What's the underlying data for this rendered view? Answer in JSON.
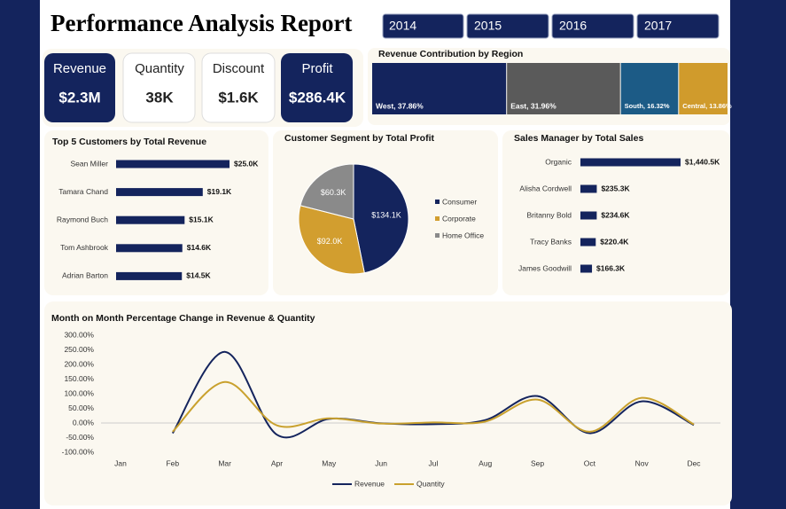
{
  "header": {
    "title": "Performance Analysis Report"
  },
  "years": [
    "2014",
    "2015",
    "2016",
    "2017"
  ],
  "kpis": [
    {
      "label": "Revenue",
      "value": "$2.3M"
    },
    {
      "label": "Quantity",
      "value": "38K"
    },
    {
      "label": "Discount",
      "value": "$1.6K"
    },
    {
      "label": "Profit",
      "value": "$286.4K"
    }
  ],
  "chart_data": [
    {
      "type": "treemap",
      "title": "Revenue Contribution by Region",
      "categories": [
        "West",
        "East",
        "South",
        "Central"
      ],
      "values": [
        37.86,
        31.96,
        16.32,
        13.86
      ],
      "value_labels": [
        "West, 37.86%",
        "East, 31.96%",
        "South, 16.32%",
        "Central, 13.86%"
      ],
      "colors": [
        "#14245d",
        "#5a5a5a",
        "#1c5b86",
        "#d09b2c"
      ]
    },
    {
      "type": "hbar",
      "title": "Top 5 Customers by Total Revenue",
      "categories": [
        "Sean Miller",
        "Tamara Chand",
        "Raymond Buch",
        "Tom Ashbrook",
        "Adrian Barton"
      ],
      "values": [
        25.0,
        19.1,
        15.1,
        14.6,
        14.5
      ],
      "value_labels": [
        "$25.0K",
        "$19.1K",
        "$15.1K",
        "$14.6K",
        "$14.5K"
      ],
      "color": "#14245d"
    },
    {
      "type": "pie",
      "title": "Customer Segment by Total Profit",
      "categories": [
        "Consumer",
        "Corporate",
        "Home Office"
      ],
      "values": [
        134.1,
        92.0,
        60.3
      ],
      "value_labels": [
        "$134.1K",
        "$92.0K",
        "$60.3K"
      ],
      "colors": [
        "#14245d",
        "#d29e2f",
        "#8a8a8a"
      ]
    },
    {
      "type": "hbar",
      "title": "Sales Manager by Total Sales",
      "categories": [
        "Organic",
        "Alisha Cordwell",
        "Britanny Bold",
        "Tracy Banks",
        "James Goodwill"
      ],
      "values": [
        1440.5,
        235.3,
        234.6,
        220.4,
        166.3
      ],
      "value_labels": [
        "$1,440.5K",
        "$235.3K",
        "$234.6K",
        "$220.4K",
        "$166.3K"
      ],
      "color": "#14245d"
    },
    {
      "type": "line",
      "title": "Month on Month Percentage Change in Revenue & Quantity",
      "categories": [
        "Jan",
        "Feb",
        "Mar",
        "Apr",
        "May",
        "Jun",
        "Jul",
        "Aug",
        "Sep",
        "Oct",
        "Nov",
        "Dec"
      ],
      "series": [
        {
          "name": "Revenue",
          "color": "#14245d",
          "values": [
            null,
            -35,
            243,
            -40,
            14,
            -1,
            -4,
            10,
            92,
            -35,
            74,
            -7
          ]
        },
        {
          "name": "Quantity",
          "color": "#c9a12e",
          "values": [
            null,
            -30,
            140,
            -8,
            16,
            -2,
            2,
            5,
            80,
            -30,
            86,
            -5
          ]
        }
      ],
      "ylim": [
        -100,
        300
      ],
      "yticks": [
        {
          "value": 300,
          "label": "300.00%"
        },
        {
          "value": 250,
          "label": "250.00%"
        },
        {
          "value": 200,
          "label": "200.00%"
        },
        {
          "value": 150,
          "label": "150.00%"
        },
        {
          "value": 100,
          "label": "100.00%"
        },
        {
          "value": 50,
          "label": "50.00%"
        },
        {
          "value": 0,
          "label": "0.00%"
        },
        {
          "value": -50,
          "label": "-50.00%"
        },
        {
          "value": -100,
          "label": "-100.00%"
        }
      ],
      "legend": "bottom"
    }
  ]
}
